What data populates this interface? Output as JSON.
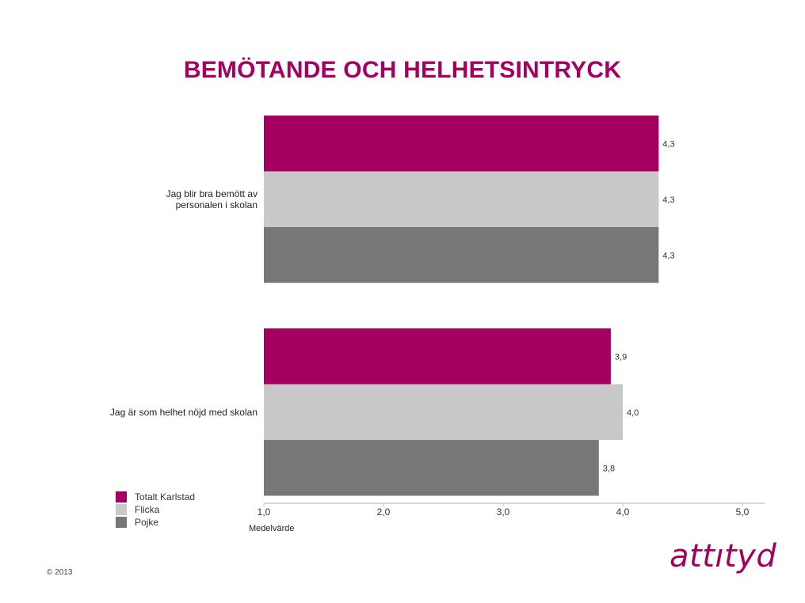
{
  "page": {
    "title": "BEMÖTANDE OCH HELHETSINTRYCK",
    "copyright": "© 2013",
    "logo_text": "attıtyd",
    "brand_color": "#a5005f"
  },
  "chart_data": {
    "type": "bar",
    "orientation": "horizontal",
    "categories": [
      [
        "Jag blir bra bemött av",
        "personalen i skolan"
      ],
      [
        "Jag är som helhet nöjd med skolan"
      ]
    ],
    "series": [
      {
        "name": "Totalt Karlstad",
        "color": "#a5005f",
        "values": [
          4.3,
          3.9
        ],
        "labels": [
          "4,3",
          "3,9"
        ]
      },
      {
        "name": "Flicka",
        "color": "#c8c8c8",
        "values": [
          4.3,
          4.0
        ],
        "labels": [
          "4,3",
          "4,0"
        ]
      },
      {
        "name": "Pojke",
        "color": "#777777",
        "values": [
          4.3,
          3.8
        ],
        "labels": [
          "4,3",
          "3,8"
        ]
      }
    ],
    "xlim": [
      1.0,
      5.0
    ],
    "xticks": [
      1.0,
      2.0,
      3.0,
      4.0,
      5.0
    ],
    "xtick_labels": [
      "1,0",
      "2,0",
      "3,0",
      "4,0",
      "5,0"
    ],
    "xlabel": "Medelvärde",
    "legend_position": "bottom-left",
    "grid": false
  }
}
